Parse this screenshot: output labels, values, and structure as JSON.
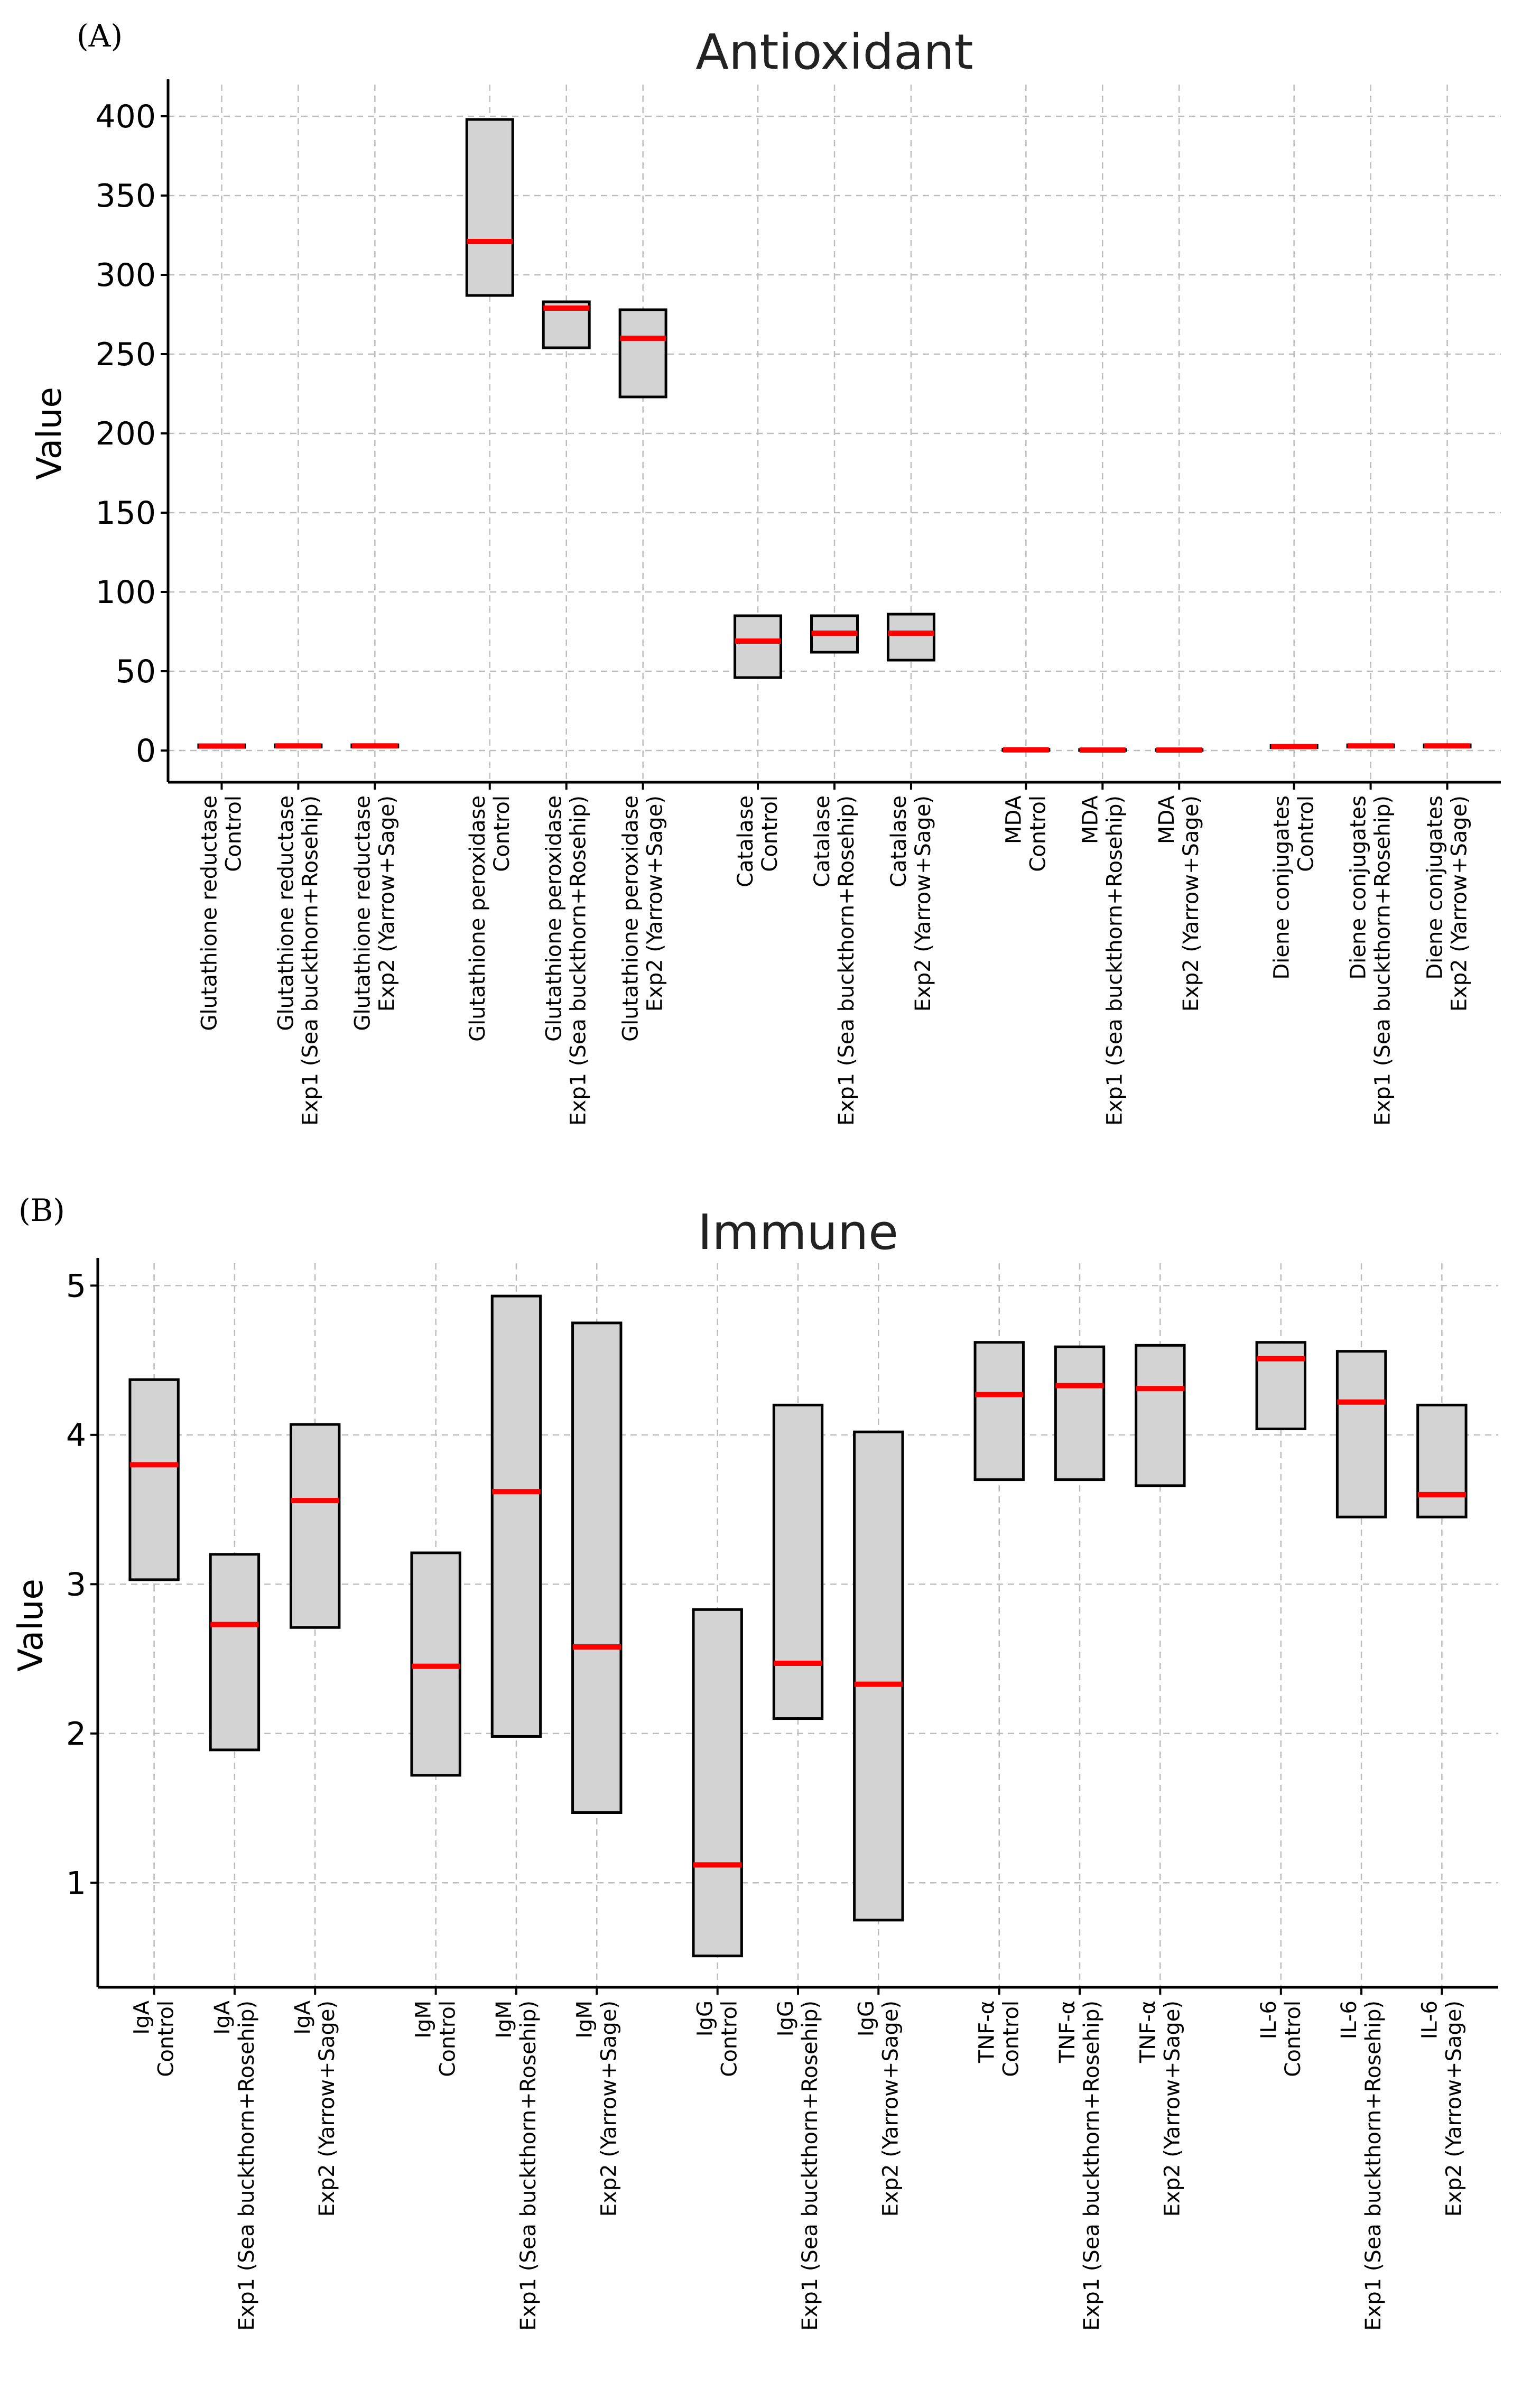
{
  "chart_data": [
    {
      "panel": "(A)",
      "type": "box",
      "title": "Antioxidant",
      "ylabel": "Value",
      "xlabel": "",
      "ylim": [
        -20,
        420
      ],
      "yticks": [
        0,
        50,
        100,
        150,
        200,
        250,
        300,
        350,
        400
      ],
      "grid": true,
      "categories": [
        [
          "Glutathione reductase",
          "Control"
        ],
        [
          "Glutathione reductase",
          "Exp1 (Sea buckthorn+Rosehip)"
        ],
        [
          "Glutathione reductase",
          "Exp2 (Yarrow+Sage)"
        ],
        [
          "Glutathione peroxidase",
          "Control"
        ],
        [
          "Glutathione peroxidase",
          "Exp1 (Sea buckthorn+Rosehip)"
        ],
        [
          "Glutathione peroxidase",
          "Exp2 (Yarrow+Sage)"
        ],
        [
          "Catalase",
          "Control"
        ],
        [
          "Catalase",
          "Exp1 (Sea buckthorn+Rosehip)"
        ],
        [
          "Catalase",
          "Exp2 (Yarrow+Sage)"
        ],
        [
          "MDA",
          "Control"
        ],
        [
          "MDA",
          "Exp1 (Sea buckthorn+Rosehip)"
        ],
        [
          "MDA",
          "Exp2 (Yarrow+Sage)"
        ],
        [
          "Diene conjugates",
          "Control"
        ],
        [
          "Diene conjugates",
          "Exp1 (Sea buckthorn+Rosehip)"
        ],
        [
          "Diene conjugates",
          "Exp2 (Yarrow+Sage)"
        ]
      ],
      "positions": [
        1,
        2,
        3,
        4.5,
        5.5,
        6.5,
        8,
        9,
        10,
        11.5,
        12.5,
        13.5,
        15,
        16,
        17
      ],
      "xlim": [
        0.3,
        17.7
      ],
      "boxes": [
        {
          "low": 2.0,
          "high": 3.6,
          "median": 2.8
        },
        {
          "low": 2.2,
          "high": 3.6,
          "median": 2.9
        },
        {
          "low": 2.2,
          "high": 3.6,
          "median": 2.9
        },
        {
          "low": 287,
          "high": 398,
          "median": 321
        },
        {
          "low": 254,
          "high": 283,
          "median": 279
        },
        {
          "low": 223,
          "high": 278,
          "median": 260
        },
        {
          "low": 46,
          "high": 85,
          "median": 69
        },
        {
          "low": 62,
          "high": 85,
          "median": 74
        },
        {
          "low": 57,
          "high": 86,
          "median": 74
        },
        {
          "low": 0.0,
          "high": 0.8,
          "median": 0.4
        },
        {
          "low": 0.0,
          "high": 0.6,
          "median": 0.3
        },
        {
          "low": 0.0,
          "high": 0.6,
          "median": 0.3
        },
        {
          "low": 1.8,
          "high": 3.2,
          "median": 2.5
        },
        {
          "low": 2.2,
          "high": 3.6,
          "median": 2.9
        },
        {
          "low": 2.2,
          "high": 3.6,
          "median": 2.9
        }
      ],
      "colors": {
        "box_fill": "#d3d3d3",
        "box_edge": "#000000",
        "median": "#ff0000"
      }
    },
    {
      "panel": "(B)",
      "type": "box",
      "title": "Immune",
      "ylabel": "Value",
      "xlabel": "",
      "ylim": [
        0.3,
        5.15
      ],
      "yticks": [
        1,
        2,
        3,
        4,
        5
      ],
      "grid": true,
      "categories": [
        [
          "IgA",
          "Control"
        ],
        [
          "IgA",
          "Exp1 (Sea buckthorn+Rosehip)"
        ],
        [
          "IgA",
          "Exp2 (Yarrow+Sage)"
        ],
        [
          "IgM",
          "Control"
        ],
        [
          "IgM",
          "Exp1 (Sea buckthorn+Rosehip)"
        ],
        [
          "IgM",
          "Exp2 (Yarrow+Sage)"
        ],
        [
          "IgG",
          "Control"
        ],
        [
          "IgG",
          "Exp1 (Sea buckthorn+Rosehip)"
        ],
        [
          "IgG",
          "Exp2 (Yarrow+Sage)"
        ],
        [
          "TNF-α",
          "Control"
        ],
        [
          "TNF-α",
          "Exp1 (Sea buckthorn+Rosehip)"
        ],
        [
          "TNF-α",
          "Exp2 (Yarrow+Sage)"
        ],
        [
          "IL-6",
          "Control"
        ],
        [
          "IL-6",
          "Exp1 (Sea buckthorn+Rosehip)"
        ],
        [
          "IL-6",
          "Exp2 (Yarrow+Sage)"
        ]
      ],
      "positions": [
        1,
        2,
        3,
        4.5,
        5.5,
        6.5,
        8,
        9,
        10,
        11.5,
        12.5,
        13.5,
        15,
        16,
        17
      ],
      "xlim": [
        0.3,
        17.7
      ],
      "boxes": [
        {
          "low": 3.03,
          "high": 4.37,
          "median": 3.8
        },
        {
          "low": 1.89,
          "high": 3.2,
          "median": 2.73
        },
        {
          "low": 2.71,
          "high": 4.07,
          "median": 3.56
        },
        {
          "low": 1.72,
          "high": 3.21,
          "median": 2.45
        },
        {
          "low": 1.98,
          "high": 4.93,
          "median": 3.62
        },
        {
          "low": 1.47,
          "high": 4.75,
          "median": 2.58
        },
        {
          "low": 0.51,
          "high": 2.83,
          "median": 1.12
        },
        {
          "low": 2.1,
          "high": 4.2,
          "median": 2.47
        },
        {
          "low": 0.75,
          "high": 4.02,
          "median": 2.33
        },
        {
          "low": 3.7,
          "high": 4.62,
          "median": 4.27
        },
        {
          "low": 3.7,
          "high": 4.59,
          "median": 4.33
        },
        {
          "low": 3.66,
          "high": 4.6,
          "median": 4.31
        },
        {
          "low": 4.04,
          "high": 4.62,
          "median": 4.51
        },
        {
          "low": 3.45,
          "high": 4.56,
          "median": 4.22
        },
        {
          "low": 3.45,
          "high": 4.2,
          "median": 3.6
        }
      ],
      "colors": {
        "box_fill": "#d3d3d3",
        "box_edge": "#000000",
        "median": "#ff0000"
      }
    }
  ]
}
